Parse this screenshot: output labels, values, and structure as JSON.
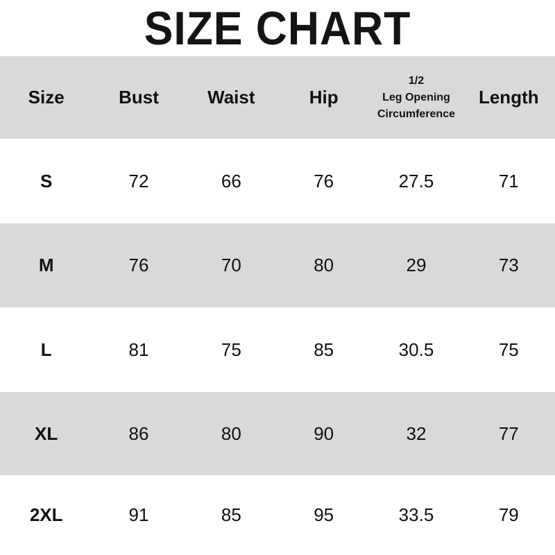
{
  "title": "SIZE CHART",
  "colors": {
    "header_bg": "#d9d9d9",
    "alt_row_bg": "#d9d9d9",
    "text": "#111111"
  },
  "table": {
    "headers": [
      "Size",
      "Bust",
      "Waist",
      "Hip",
      [
        "1/2",
        "Leg Opening",
        "Circumference"
      ],
      "Length"
    ],
    "rows": [
      [
        "S",
        "72",
        "66",
        "76",
        "27.5",
        "71"
      ],
      [
        "M",
        "76",
        "70",
        "80",
        "29",
        "73"
      ],
      [
        "L",
        "81",
        "75",
        "85",
        "30.5",
        "75"
      ],
      [
        "XL",
        "86",
        "80",
        "90",
        "32",
        "77"
      ],
      [
        "2XL",
        "91",
        "85",
        "95",
        "33.5",
        "79"
      ]
    ]
  }
}
